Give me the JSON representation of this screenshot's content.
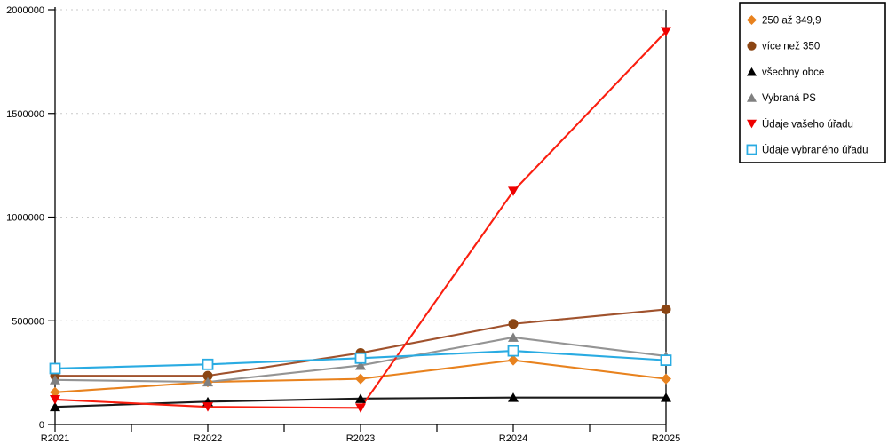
{
  "chart_data": {
    "type": "line",
    "title": "",
    "xlabel": "",
    "ylabel": "",
    "categories": [
      "R2021",
      "R2022",
      "R2023",
      "R2024",
      "R2025"
    ],
    "y_axis": {
      "min": 0,
      "max": 2000000,
      "tick_interval": 500000,
      "tick_labels": [
        "0",
        "500000",
        "1000000",
        "1500000",
        "2000000"
      ]
    },
    "grid": {
      "on": true,
      "color": "#c9c9c9",
      "dash": "2 4"
    },
    "legend": {
      "position": "top-right",
      "border_color": "#000000",
      "background": "#ffffff"
    },
    "series": [
      {
        "name": "250 až 349,9",
        "marker": "diamond",
        "line_color": "#e8821e",
        "marker_color": "#e8821e",
        "values": [
          155000,
          205000,
          220000,
          310000,
          220000
        ]
      },
      {
        "name": "více než 350",
        "marker": "circle",
        "line_color": "#a0522d",
        "marker_color": "#8b4513",
        "values": [
          235000,
          235000,
          345000,
          485000,
          555000
        ]
      },
      {
        "name": "všechny obce",
        "marker": "triangle-up",
        "line_color": "#1a1a1a",
        "marker_color": "#000000",
        "values": [
          85000,
          110000,
          125000,
          130000,
          130000
        ]
      },
      {
        "name": "Vybraná PS",
        "marker": "triangle-up",
        "line_color": "#949494",
        "marker_color": "#808080",
        "values": [
          215000,
          205000,
          285000,
          420000,
          330000
        ]
      },
      {
        "name": "Údaje vašeho úřadu",
        "marker": "triangle-down",
        "line_color": "#fa1e0f",
        "marker_color": "#ee0000",
        "values": [
          120000,
          85000,
          80000,
          1125000,
          1895000
        ]
      },
      {
        "name": "Údaje vybraného úřadu",
        "marker": "square-open",
        "line_color": "#29abe2",
        "marker_color": "#29abe2",
        "values": [
          270000,
          290000,
          320000,
          355000,
          310000
        ]
      }
    ]
  }
}
